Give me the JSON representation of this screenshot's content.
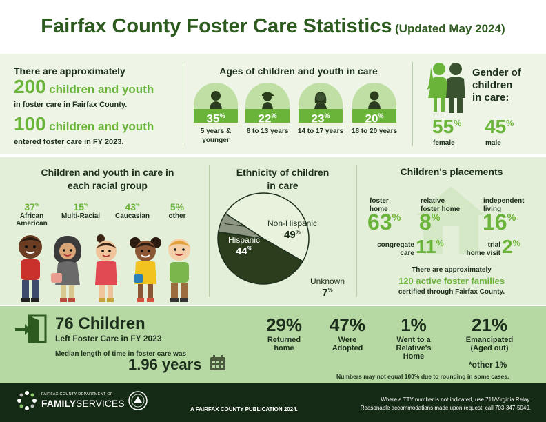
{
  "title": {
    "main": "Fairfax County Foster Care Statistics",
    "sub": "(Updated May 2024)"
  },
  "intro": {
    "lead": "There are approximately",
    "count1": "200",
    "count1_label": "children and youth",
    "count1_sub": "in foster care in Fairfax County.",
    "count2": "100",
    "count2_label": "children and youth",
    "count2_sub": "entered foster care in FY 2023."
  },
  "ages": {
    "heading": "Ages of children and youth in care",
    "groups": [
      {
        "value": "35",
        "pct_sign": "%",
        "label": "5 years & younger",
        "icon": "toddler-icon"
      },
      {
        "value": "22",
        "pct_sign": "%",
        "label": "6 to 13 years",
        "icon": "child-cap-icon"
      },
      {
        "value": "23",
        "pct_sign": "%",
        "label": "14 to 17 years",
        "icon": "teen-girl-icon"
      },
      {
        "value": "20",
        "pct_sign": "%",
        "label": "18 to 20 years",
        "icon": "young-adult-icon"
      }
    ]
  },
  "gender": {
    "heading": "Gender of children in care:",
    "heading_lines": [
      "Gender of",
      "children",
      "in care:"
    ],
    "female_value": "55",
    "female_label": "female",
    "male_value": "45",
    "male_label": "male",
    "pct_sign": "%"
  },
  "racial": {
    "heading_lines": [
      "Children and youth in care in",
      "each racial group"
    ],
    "groups": [
      {
        "value": "37",
        "pct_sign": "%",
        "label_lines": [
          "African",
          "American"
        ]
      },
      {
        "value": "15",
        "pct_sign": "%",
        "label_lines": [
          "Multi-Racial"
        ]
      },
      {
        "value": "43",
        "pct_sign": "%",
        "label_lines": [
          "Caucasian"
        ]
      },
      {
        "value": "5%",
        "pct_sign": "",
        "label_lines": [
          "other"
        ]
      }
    ]
  },
  "ethnicity": {
    "heading_lines": [
      "Ethnicity of children",
      "in care"
    ],
    "pct_sign": "%"
  },
  "chart_data": {
    "type": "pie",
    "title": "Ethnicity of children in care",
    "categories": [
      "Non-Hispanic",
      "Hispanic",
      "Unknown"
    ],
    "values": [
      49,
      44,
      7
    ],
    "value_text": [
      "49",
      "44",
      "7"
    ],
    "colors": [
      "#e8f2dd",
      "#2b3d1d",
      "#8d9682"
    ]
  },
  "placements": {
    "heading": "Children's placements",
    "foster_home": {
      "label_lines": [
        "foster",
        "home"
      ],
      "value": "63",
      "pct_sign": "%"
    },
    "relative_foster_home": {
      "label_lines": [
        "relative",
        "foster home"
      ],
      "value": "8",
      "pct_sign": "%"
    },
    "independent_living": {
      "label_lines": [
        "independent",
        "living"
      ],
      "value": "16",
      "pct_sign": "%"
    },
    "congregate_care": {
      "label_lines": [
        "congregate",
        "care"
      ],
      "value": "11",
      "pct_sign": "%"
    },
    "trial_home_visit": {
      "label_lines": [
        "trial",
        "home visit"
      ],
      "value": "2",
      "pct_sign": "%"
    },
    "families_lead": "There are approximately",
    "families_count": "120 active foster families",
    "families_sub": "certified through Fairfax County."
  },
  "left_care": {
    "count": "76 Children",
    "sub": "Left Foster Care in FY 2023",
    "median_label": "Median length of time in foster care was",
    "median_value": "1.96 years",
    "outcomes": [
      {
        "value": "29%",
        "label_lines": [
          "Returned",
          "home"
        ]
      },
      {
        "value": "47%",
        "label_lines": [
          "Were",
          "Adopted"
        ]
      },
      {
        "value": "1%",
        "label_lines": [
          "Went to a",
          "Relative's",
          "Home"
        ]
      },
      {
        "value": "21%",
        "label_lines": [
          "Emancipated",
          "(Aged out)"
        ]
      }
    ],
    "other": "*other 1%",
    "note": "Numbers may not equal 100% due to rounding in some cases."
  },
  "footer": {
    "org_small": "FAIRFAX COUNTY DEPARTMENT OF",
    "org_family": "FAMILY",
    "org_services": "SERVICES",
    "publication": "A FAIRFAX COUNTY PUBLICATION 2024.",
    "tty": "Where a TTY number is not indicated, use 711/Virginia Relay.",
    "accommodations": "Reasonable accommodations made upon request; call 703-347-5049."
  },
  "colors": {
    "accent": "#6bb43a",
    "title": "#2d5a1e",
    "footer": "#142a14"
  }
}
